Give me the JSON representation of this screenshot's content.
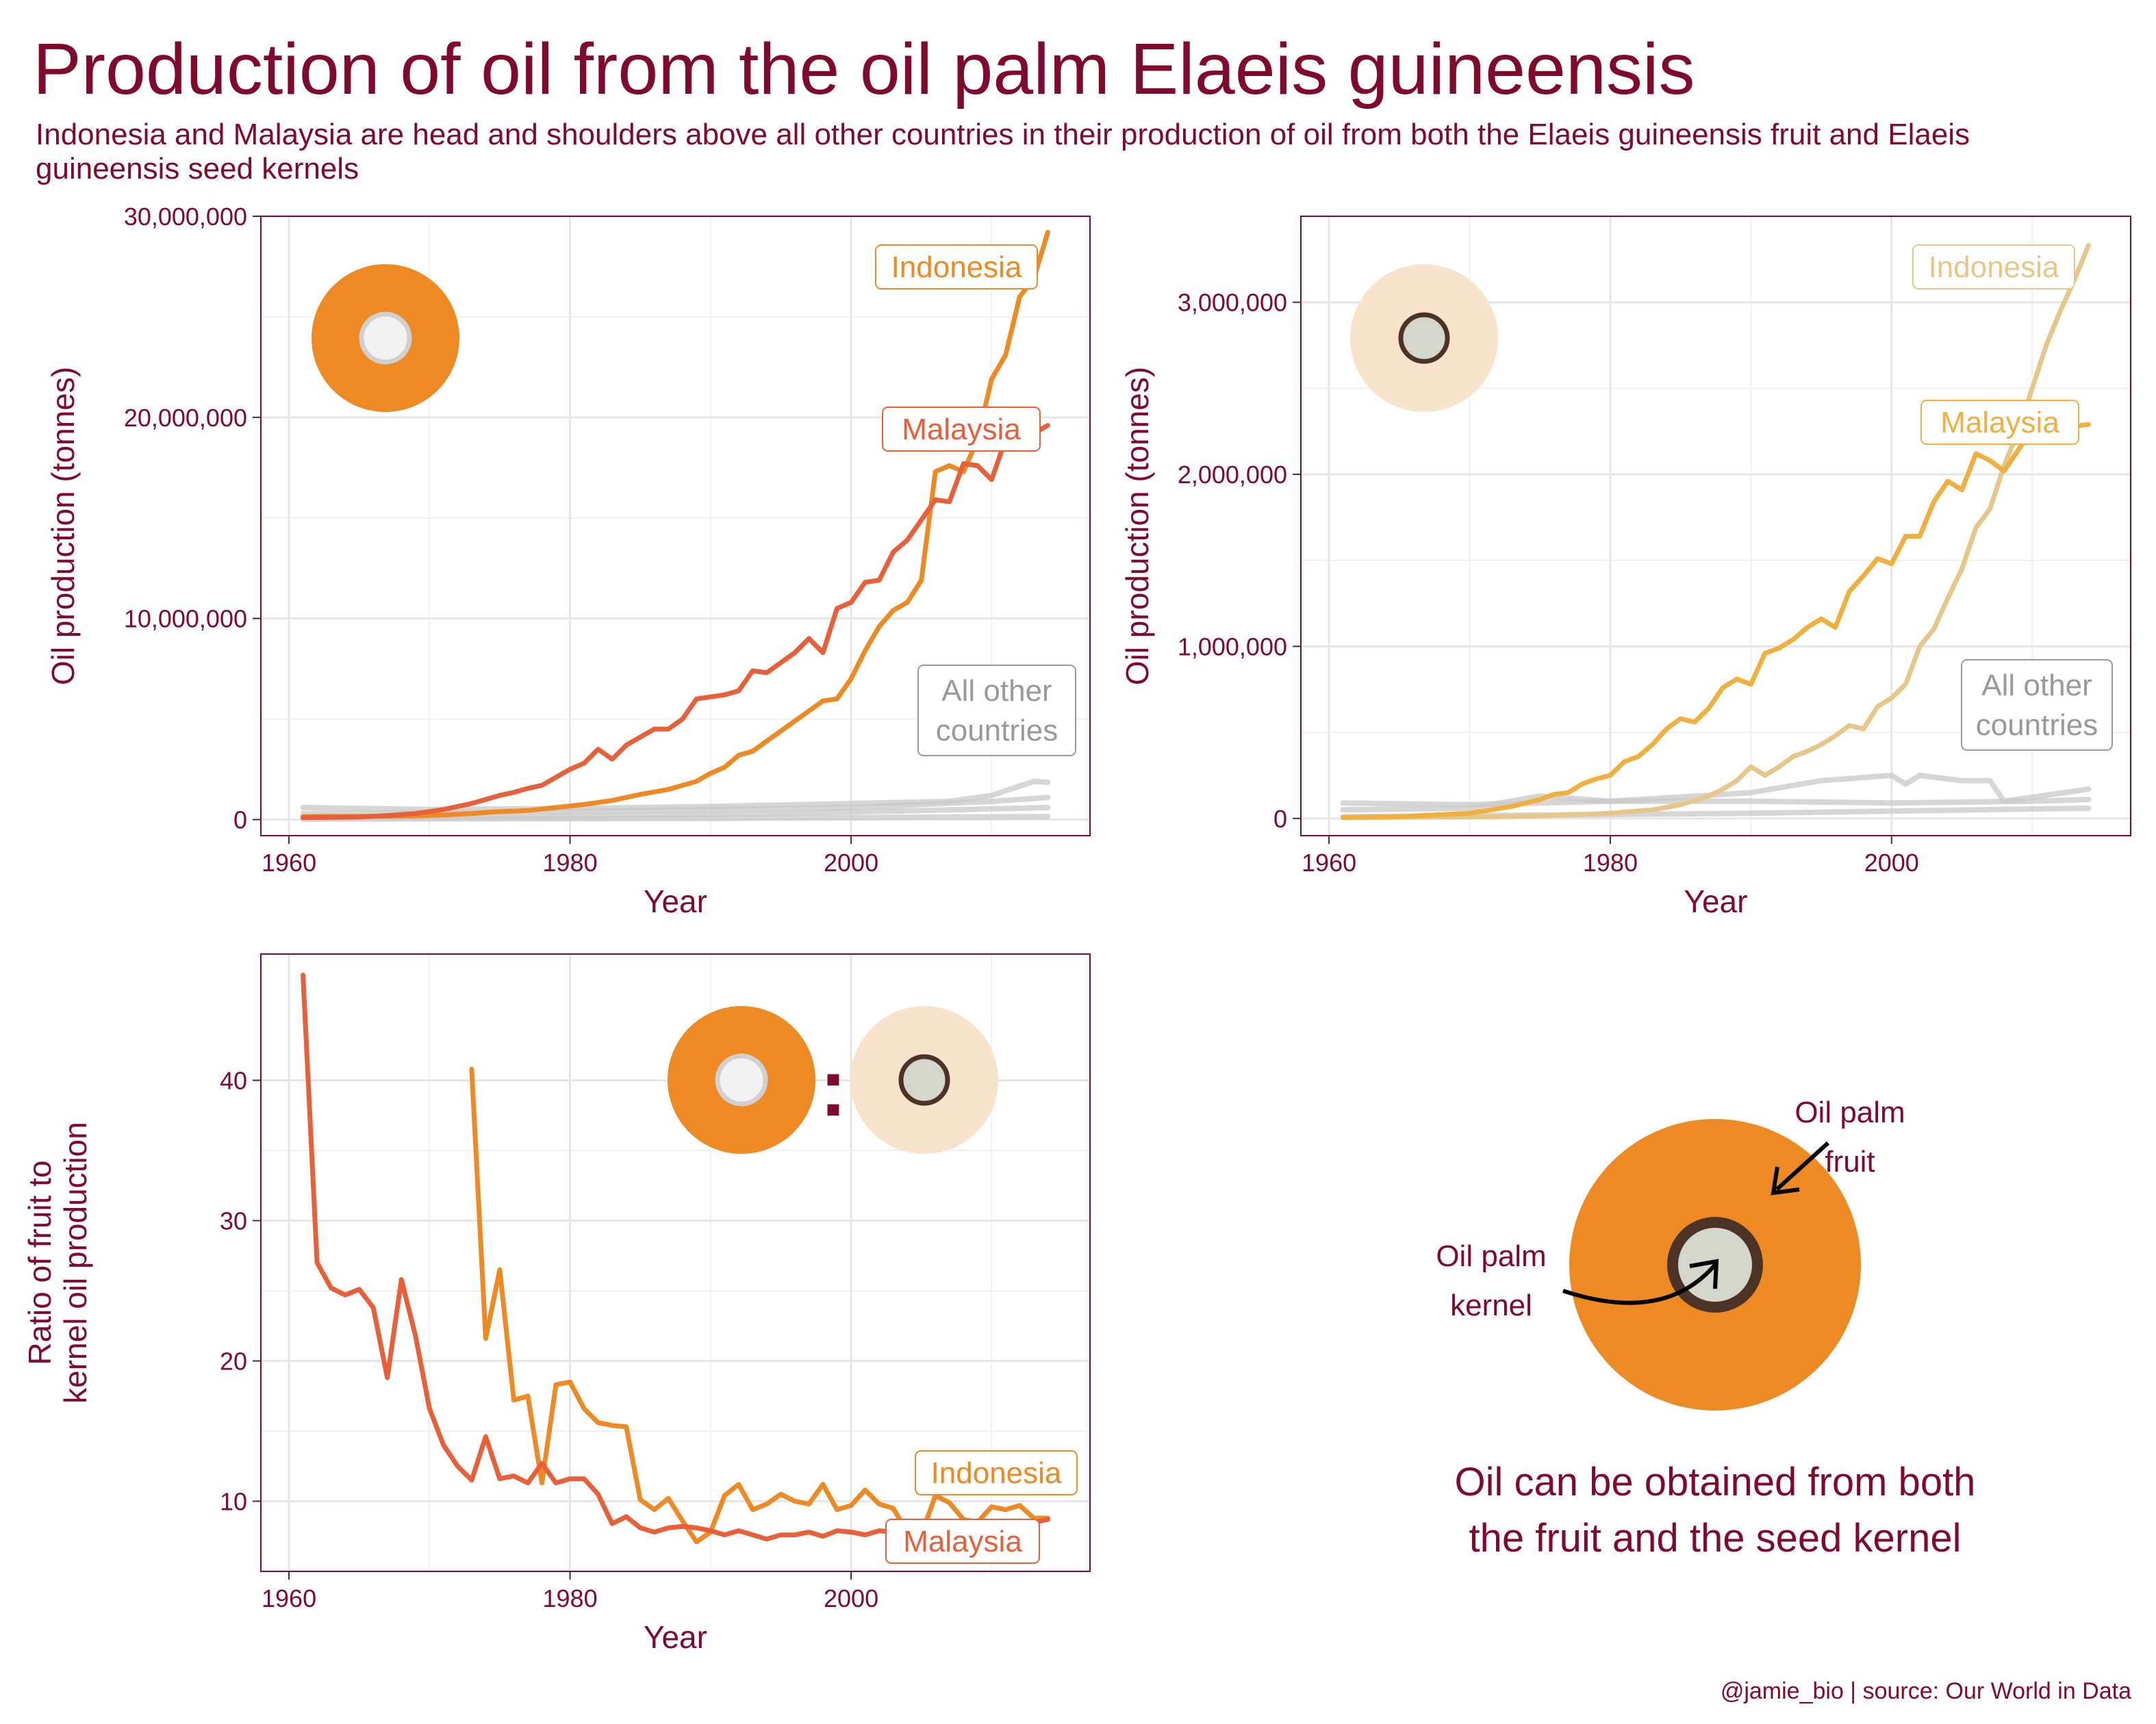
{
  "title": "Production of oil from the oil palm Elaeis guineensis",
  "subtitle": "Indonesia and Malaysia are head and shoulders above all other countries in their production of oil from both the Elaeis guineensis fruit and Elaeis guineensis seed kernels",
  "caption": "@jamie_bio | source: Our World in Data",
  "colors": {
    "title": "#7f0a2d",
    "fruit_indonesia": "#ee8a24",
    "fruit_malaysia": "#e8603a",
    "kernel_indonesia": "#e6c78a",
    "kernel_malaysia": "#f0b040",
    "other": "#c8c8c8",
    "fruit_circle": "#ee8a24",
    "kernel_shell": "#4d3326",
    "kernel_core": "#d4d6cc",
    "fruit_center": "#f2f2f2",
    "faded_fruit": "#fae3cd"
  },
  "diagram": {
    "fruit_label": "Oil palm\nfruit",
    "kernel_label": "Oil palm\nkernel",
    "note": "Oil can be obtained from both\nthe fruit and the seed kernel"
  },
  "ratio_separator": ":",
  "chart_data": [
    {
      "type": "line",
      "xlabel": "Year",
      "ylabel": "Oil production (tonnes)",
      "xlim": [
        1958,
        2017
      ],
      "ylim": [
        -800000,
        30000000
      ],
      "xticks": [
        1960,
        1980,
        2000
      ],
      "yticks": [
        0,
        10000000,
        20000000,
        30000000
      ],
      "ytick_labels": [
        "0",
        "10,000,000",
        "20,000,000",
        "30,000,000"
      ],
      "grid": true,
      "series": [
        {
          "name": "Indonesia",
          "color_key": "fruit_indonesia",
          "x": [
            1961,
            1963,
            1965,
            1967,
            1969,
            1971,
            1973,
            1975,
            1977,
            1979,
            1981,
            1983,
            1985,
            1987,
            1989,
            1990,
            1991,
            1992,
            1993,
            1994,
            1995,
            1996,
            1997,
            1998,
            1999,
            2000,
            2001,
            2002,
            2003,
            2004,
            2005,
            2006,
            2007,
            2008,
            2009,
            2010,
            2011,
            2012,
            2013,
            2014
          ],
          "y": [
            150000,
            155000,
            160000,
            170000,
            180000,
            230000,
            300000,
            400000,
            450000,
            600000,
            750000,
            950000,
            1250000,
            1500000,
            1900000,
            2300000,
            2600000,
            3200000,
            3400000,
            3900000,
            4400000,
            4900000,
            5400000,
            5900000,
            6000000,
            7000000,
            8400000,
            9600000,
            10400000,
            10800000,
            11900000,
            17300000,
            17600000,
            17300000,
            18900000,
            21900000,
            23100000,
            26000000,
            26900000,
            29200000
          ]
        },
        {
          "name": "Malaysia",
          "color_key": "fruit_malaysia",
          "x": [
            1961,
            1963,
            1965,
            1967,
            1969,
            1971,
            1973,
            1975,
            1976,
            1977,
            1978,
            1979,
            1980,
            1981,
            1982,
            1983,
            1984,
            1985,
            1986,
            1987,
            1988,
            1989,
            1990,
            1991,
            1992,
            1993,
            1994,
            1995,
            1996,
            1997,
            1998,
            1999,
            2000,
            2001,
            2002,
            2003,
            2004,
            2005,
            2006,
            2007,
            2008,
            2009,
            2010,
            2011,
            2012,
            2013,
            2014
          ],
          "y": [
            100000,
            110000,
            130000,
            200000,
            300000,
            500000,
            800000,
            1200000,
            1350000,
            1550000,
            1700000,
            2100000,
            2500000,
            2800000,
            3500000,
            3000000,
            3700000,
            4100000,
            4500000,
            4500000,
            5000000,
            6000000,
            6100000,
            6200000,
            6400000,
            7400000,
            7300000,
            7800000,
            8300000,
            9000000,
            8300000,
            10500000,
            10800000,
            11800000,
            11900000,
            13300000,
            13900000,
            14900000,
            15900000,
            15800000,
            17700000,
            17600000,
            16900000,
            18900000,
            18800000,
            19200000,
            19600000
          ]
        },
        {
          "name": "All other countries",
          "color_key": "other",
          "x": [
            1961,
            1970,
            1980,
            1990,
            2000,
            2007,
            2010,
            2013,
            2014
          ],
          "y": [
            600000,
            500000,
            550000,
            650000,
            800000,
            900000,
            1200000,
            1900000,
            1850000
          ]
        },
        {
          "name": "",
          "color_key": "other",
          "x": [
            1961,
            1970,
            1980,
            1990,
            2000,
            2010,
            2014
          ],
          "y": [
            300000,
            350000,
            400000,
            500000,
            600000,
            900000,
            1100000
          ]
        },
        {
          "name": "",
          "color_key": "other",
          "x": [
            1961,
            1975,
            1990,
            2005,
            2014
          ],
          "y": [
            100000,
            150000,
            250000,
            450000,
            600000
          ]
        },
        {
          "name": "",
          "color_key": "other",
          "x": [
            1961,
            1990,
            2014
          ],
          "y": [
            20000,
            60000,
            150000
          ]
        }
      ],
      "labels": [
        {
          "text": "Indonesia",
          "color_key": "fruit_indonesia"
        },
        {
          "text": "Malaysia",
          "color_key": "fruit_malaysia"
        },
        {
          "text": "All other\ncountries",
          "color_key": "other_text"
        }
      ]
    },
    {
      "type": "line",
      "xlabel": "Year",
      "ylabel": "Oil production (tonnes)",
      "xlim": [
        1958,
        2017
      ],
      "ylim": [
        -100000,
        3500000
      ],
      "xticks": [
        1960,
        1980,
        2000
      ],
      "yticks": [
        0,
        1000000,
        2000000,
        3000000
      ],
      "ytick_labels": [
        "0",
        "1,000,000",
        "2,000,000",
        "3,000,000"
      ],
      "grid": true,
      "series": [
        {
          "name": "Indonesia",
          "color_key": "kernel_indonesia",
          "x": [
            1961,
            1970,
            1975,
            1980,
            1983,
            1985,
            1987,
            1988,
            1989,
            1990,
            1991,
            1992,
            1993,
            1994,
            1995,
            1996,
            1997,
            1998,
            1999,
            2000,
            2001,
            2002,
            2003,
            2004,
            2005,
            2006,
            2007,
            2008,
            2009,
            2010,
            2011,
            2012,
            2013,
            2014
          ],
          "y": [
            5000,
            8000,
            15000,
            30000,
            50000,
            80000,
            130000,
            170000,
            220000,
            300000,
            250000,
            300000,
            360000,
            390000,
            430000,
            480000,
            540000,
            520000,
            650000,
            700000,
            780000,
            1000000,
            1100000,
            1280000,
            1450000,
            1690000,
            1800000,
            2050000,
            2250000,
            2500000,
            2750000,
            2950000,
            3130000,
            3330000
          ]
        },
        {
          "name": "Malaysia",
          "color_key": "kernel_malaysia",
          "x": [
            1961,
            1965,
            1970,
            1973,
            1975,
            1976,
            1977,
            1978,
            1979,
            1980,
            1981,
            1982,
            1983,
            1984,
            1985,
            1986,
            1987,
            1988,
            1989,
            1990,
            1991,
            1992,
            1993,
            1994,
            1995,
            1996,
            1997,
            1998,
            1999,
            2000,
            2001,
            2002,
            2003,
            2004,
            2005,
            2006,
            2007,
            2008,
            2009,
            2010,
            2011,
            2012,
            2013,
            2014
          ],
          "y": [
            5000,
            10000,
            30000,
            70000,
            110000,
            140000,
            150000,
            200000,
            230000,
            250000,
            330000,
            360000,
            430000,
            520000,
            580000,
            560000,
            640000,
            760000,
            810000,
            780000,
            960000,
            990000,
            1040000,
            1110000,
            1160000,
            1110000,
            1320000,
            1410000,
            1510000,
            1480000,
            1640000,
            1640000,
            1840000,
            1960000,
            1910000,
            2120000,
            2080000,
            2020000,
            2140000,
            2260000,
            2290000,
            2290000,
            2280000,
            2290000
          ]
        },
        {
          "name": "",
          "color_key": "other",
          "x": [
            1961,
            1970,
            1980,
            1990,
            1995,
            2000,
            2001,
            2002,
            2005,
            2007,
            2008,
            2014
          ],
          "y": [
            90000,
            80000,
            100000,
            150000,
            220000,
            250000,
            200000,
            250000,
            220000,
            220000,
            100000,
            170000
          ]
        },
        {
          "name": "",
          "color_key": "other",
          "x": [
            1961,
            1970,
            1975,
            1980,
            1990,
            2000,
            2010,
            2014
          ],
          "y": [
            50000,
            60000,
            130000,
            100000,
            100000,
            90000,
            100000,
            110000
          ]
        },
        {
          "name": "",
          "color_key": "other",
          "x": [
            1961,
            1990,
            2014
          ],
          "y": [
            10000,
            30000,
            60000
          ]
        }
      ],
      "labels": [
        {
          "text": "Indonesia",
          "color_key": "kernel_indonesia"
        },
        {
          "text": "Malaysia",
          "color_key": "kernel_malaysia"
        },
        {
          "text": "All other\ncountries",
          "color_key": "other_text"
        }
      ]
    },
    {
      "type": "line",
      "xlabel": "Year",
      "ylabel": "Ratio of fruit to\nkernel oil production",
      "xlim": [
        1958,
        2017
      ],
      "ylim": [
        5,
        49
      ],
      "xticks": [
        1960,
        1980,
        2000
      ],
      "yticks": [
        10,
        20,
        30,
        40
      ],
      "ytick_labels": [
        "10",
        "20",
        "30",
        "40"
      ],
      "grid": true,
      "series": [
        {
          "name": "Indonesia",
          "color_key": "fruit_indonesia",
          "x": [
            1973,
            1974,
            1975,
            1976,
            1977,
            1978,
            1979,
            1980,
            1981,
            1982,
            1983,
            1984,
            1985,
            1986,
            1987,
            1988,
            1989,
            1990,
            1991,
            1992,
            1993,
            1994,
            1995,
            1996,
            1997,
            1998,
            1999,
            2000,
            2001,
            2002,
            2003,
            2004,
            2005,
            2006,
            2007,
            2008,
            2009,
            2010,
            2011,
            2012,
            2013,
            2014
          ],
          "y": [
            40.8,
            21.6,
            26.5,
            17.2,
            17.5,
            11.3,
            18.3,
            18.5,
            16.6,
            15.6,
            15.4,
            15.3,
            10.1,
            9.4,
            10.2,
            8.6,
            7.1,
            7.8,
            10.4,
            11.2,
            9.4,
            9.8,
            10.5,
            10.0,
            9.8,
            11.2,
            9.4,
            9.7,
            10.8,
            9.8,
            9.5,
            7.8,
            7.6,
            10.4,
            9.9,
            8.7,
            8.5,
            9.6,
            9.4,
            9.7,
            8.8,
            8.8
          ]
        },
        {
          "name": "Malaysia",
          "color_key": "fruit_malaysia",
          "x": [
            1961,
            1962,
            1963,
            1964,
            1965,
            1966,
            1967,
            1968,
            1969,
            1970,
            1971,
            1972,
            1973,
            1974,
            1975,
            1976,
            1977,
            1978,
            1979,
            1980,
            1981,
            1982,
            1983,
            1984,
            1985,
            1986,
            1987,
            1988,
            1989,
            1990,
            1991,
            1992,
            1993,
            1994,
            1995,
            1996,
            1997,
            1998,
            1999,
            2000,
            2001,
            2002,
            2003,
            2004,
            2005,
            2006,
            2007,
            2008,
            2009,
            2010,
            2011,
            2012,
            2013,
            2014
          ],
          "y": [
            47.5,
            27.0,
            25.2,
            24.7,
            25.1,
            23.8,
            18.8,
            25.8,
            21.8,
            16.6,
            14.0,
            12.5,
            11.5,
            14.6,
            11.6,
            11.8,
            11.3,
            12.7,
            11.3,
            11.6,
            11.6,
            10.5,
            8.4,
            8.9,
            8.1,
            7.8,
            8.1,
            8.2,
            8.1,
            7.9,
            7.6,
            7.9,
            7.6,
            7.3,
            7.6,
            7.6,
            7.8,
            7.5,
            7.9,
            7.8,
            7.6,
            7.9,
            7.8,
            8.1,
            8.3,
            8.0,
            7.9,
            8.1,
            8.3,
            8.4,
            8.5,
            8.6,
            8.5,
            8.7
          ]
        }
      ],
      "labels": [
        {
          "text": "Indonesia",
          "color_key": "fruit_indonesia"
        },
        {
          "text": "Malaysia",
          "color_key": "fruit_malaysia"
        }
      ]
    }
  ]
}
